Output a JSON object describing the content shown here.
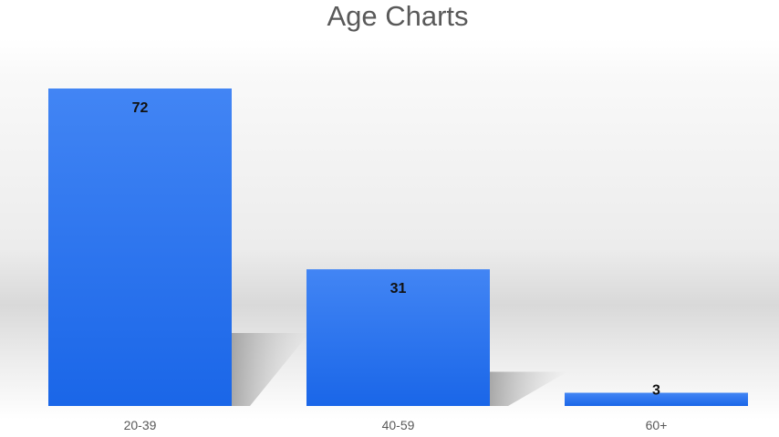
{
  "chart_data": {
    "type": "bar",
    "title": "Age Charts",
    "xlabel": "",
    "ylabel": "",
    "categories": [
      "20-39",
      "40-59",
      "60+"
    ],
    "values": [
      72,
      31,
      3
    ],
    "ylim": [
      0,
      72
    ],
    "grid": false,
    "legend": "none",
    "data_labels": true
  },
  "colors": {
    "bar_top": "#4285f4",
    "bar_bottom": "#1a66e8",
    "plot_background_light": "#fbfbfb",
    "plot_background_band": "#d6d6d6",
    "title": "#595959",
    "tick_label": "#595959",
    "data_label": "#111111"
  }
}
